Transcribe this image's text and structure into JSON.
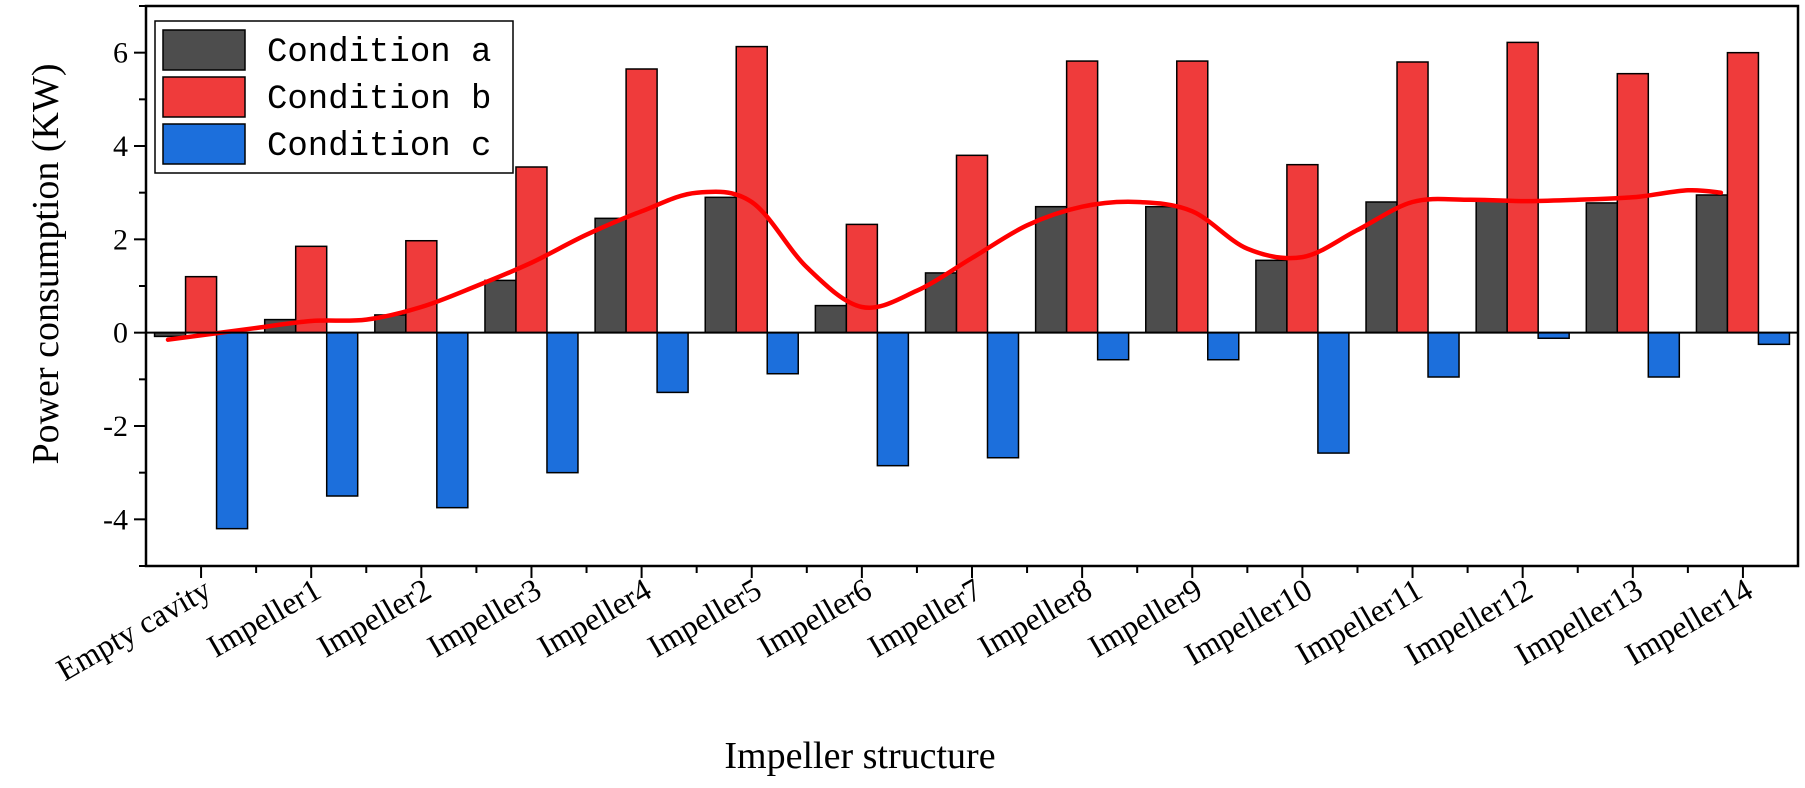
{
  "chart_data": {
    "type": "bar",
    "title": "",
    "xlabel": "Impeller structure",
    "ylabel": "Power consumption (KW)",
    "ylim": [
      -5,
      7
    ],
    "yticks": [
      -4,
      -2,
      0,
      2,
      4,
      6
    ],
    "grid": false,
    "legend_position": "top-left",
    "categories": [
      "Empty cavity",
      "Impeller1",
      "Impeller2",
      "Impeller3",
      "Impeller4",
      "Impeller5",
      "Impeller6",
      "Impeller7",
      "Impeller8",
      "Impeller9",
      "Impeller10",
      "Impeller11",
      "Impeller12",
      "Impeller13",
      "Impeller14"
    ],
    "series": [
      {
        "name": "Condition a",
        "color": "#4d4d4d",
        "values": [
          -0.08,
          0.28,
          0.38,
          1.12,
          2.45,
          2.9,
          0.58,
          1.28,
          2.7,
          2.7,
          1.55,
          2.8,
          2.85,
          2.78,
          2.95
        ]
      },
      {
        "name": "Condition b",
        "color": "#ef3b3b",
        "values": [
          1.2,
          1.85,
          1.97,
          3.55,
          5.65,
          6.13,
          2.32,
          3.8,
          5.82,
          5.82,
          3.6,
          5.8,
          6.22,
          5.55,
          6.0
        ]
      },
      {
        "name": "Condition c",
        "color": "#1c6fdc",
        "values": [
          -4.2,
          -3.5,
          -3.75,
          -3.0,
          -1.28,
          -0.88,
          -2.85,
          -2.68,
          -0.58,
          -0.58,
          -2.58,
          -0.95,
          -0.12,
          -0.95,
          -0.25
        ]
      }
    ],
    "trend_line": {
      "color": "#ff0000",
      "x": [
        -0.3,
        0.5,
        1.0,
        1.5,
        2.0,
        2.5,
        3.0,
        3.5,
        4.0,
        4.5,
        5.0,
        5.5,
        6.0,
        6.5,
        7.0,
        7.5,
        8.0,
        8.5,
        9.0,
        9.5,
        10.0,
        10.5,
        11.0,
        11.5,
        12.0,
        12.5,
        13.0,
        13.5,
        13.8
      ],
      "values": [
        -0.15,
        0.1,
        0.25,
        0.28,
        0.55,
        1.0,
        1.5,
        2.1,
        2.6,
        3.0,
        2.8,
        1.4,
        0.55,
        0.9,
        1.6,
        2.3,
        2.7,
        2.8,
        2.6,
        1.8,
        1.62,
        2.2,
        2.8,
        2.85,
        2.82,
        2.85,
        2.9,
        3.05,
        3.0
      ]
    }
  }
}
